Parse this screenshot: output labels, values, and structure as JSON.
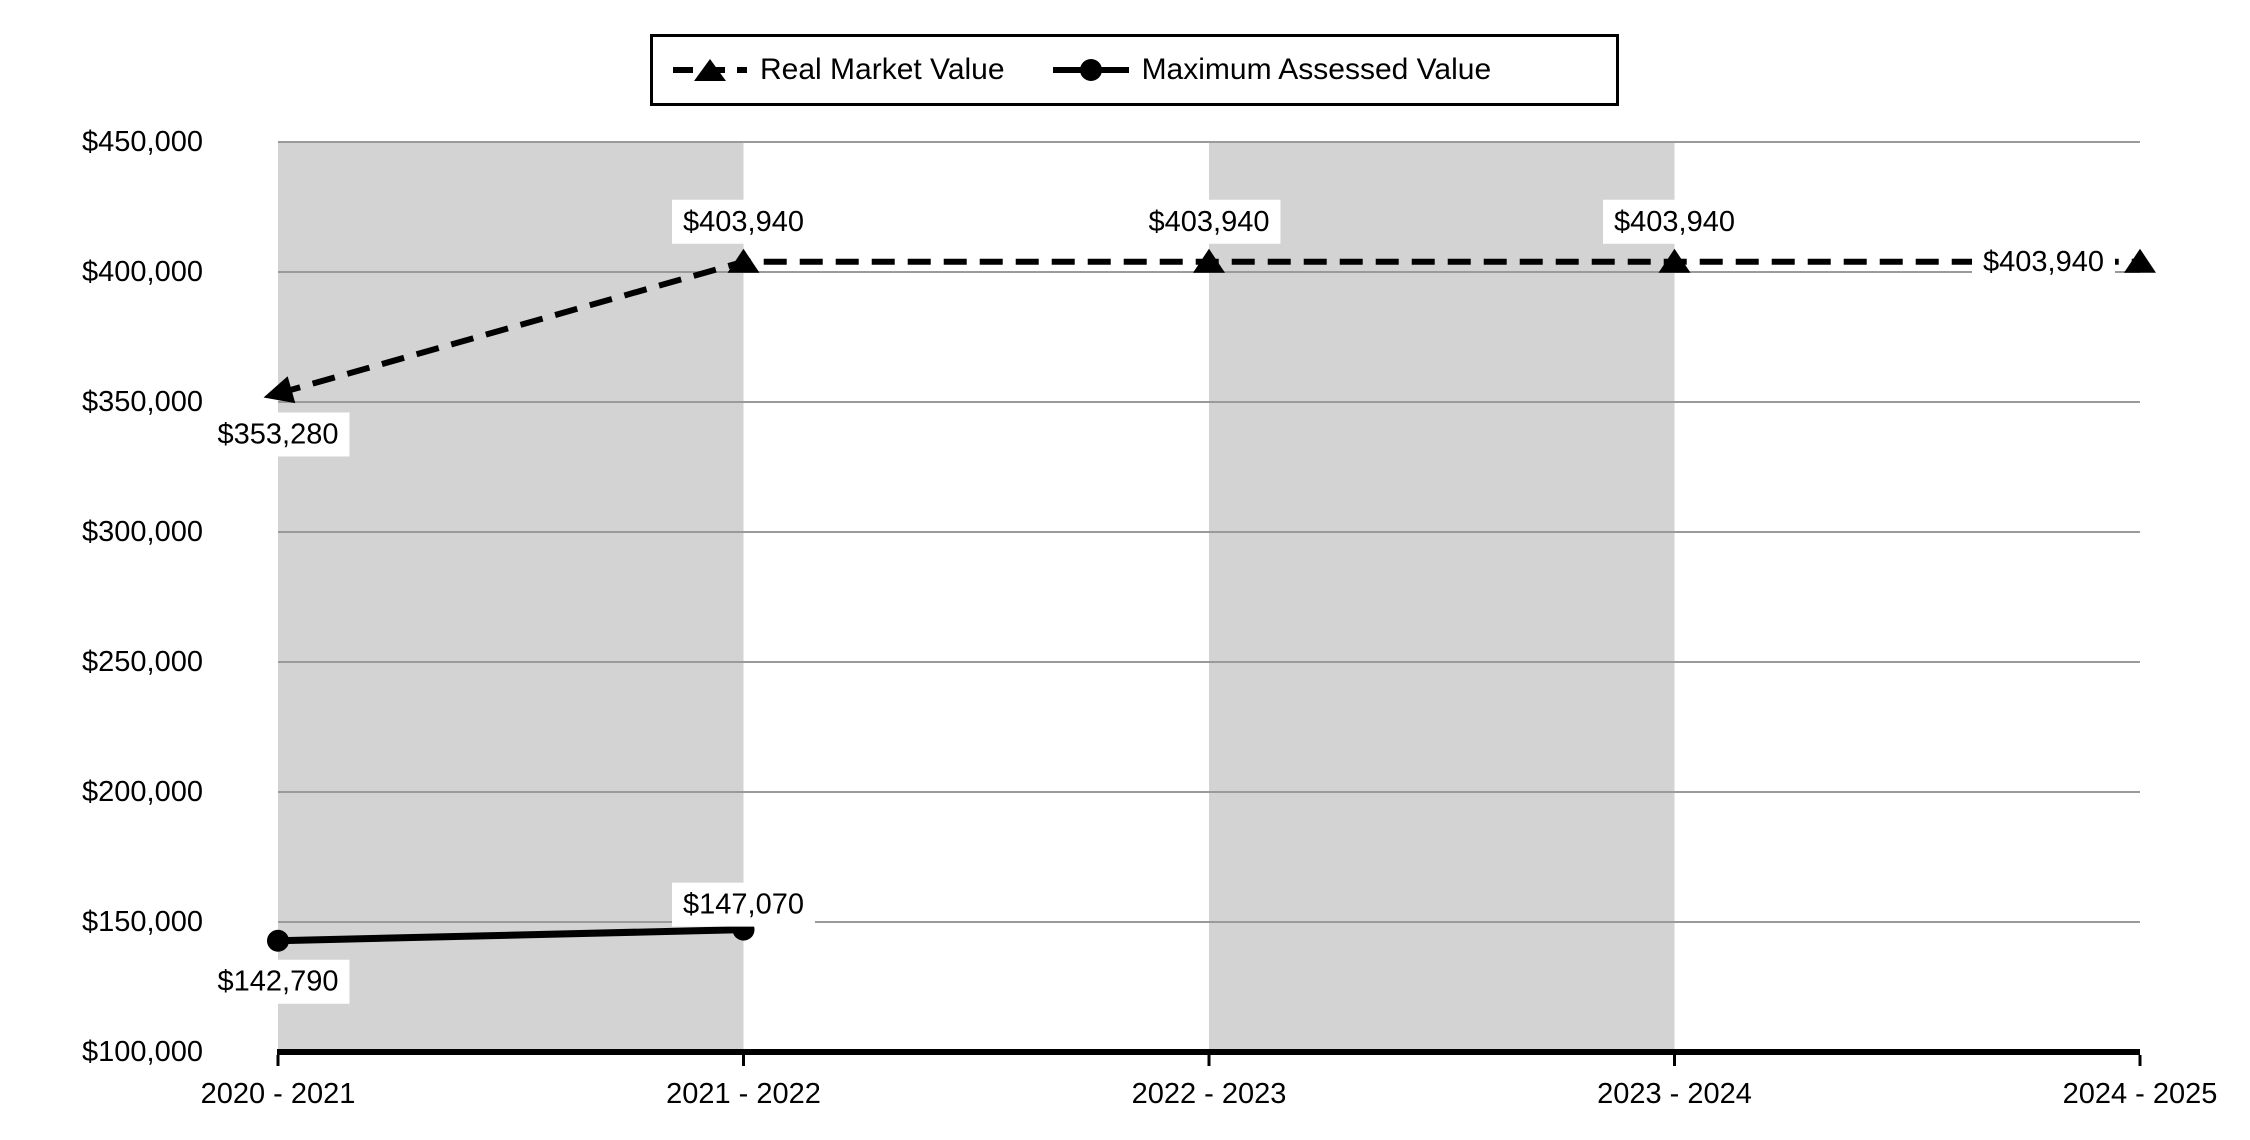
{
  "chart_data": {
    "type": "line",
    "title": "",
    "categories": [
      "2020 - 2021",
      "2021 - 2022",
      "2022 - 2023",
      "2023 - 2024",
      "2024 - 2025"
    ],
    "series": [
      {
        "name": "Real Market Value",
        "line_style": "dashed",
        "marker": "triangle",
        "color": "#000000",
        "values": [
          353280,
          403940,
          403940,
          403940,
          403940
        ],
        "point_labels": [
          "$353,280",
          "$403,940",
          "$403,940",
          "$403,940",
          "$403,940"
        ],
        "label_placement": [
          "below",
          "above",
          "above",
          "above",
          "left"
        ]
      },
      {
        "name": "Maximum Assessed Value",
        "line_style": "solid",
        "marker": "circle",
        "color": "#000000",
        "values": [
          142790,
          147070,
          null,
          null,
          null
        ],
        "point_labels": [
          "$142,790",
          "$147,070",
          null,
          null,
          null
        ],
        "label_placement": [
          "below",
          "above-close",
          null,
          null,
          null
        ]
      }
    ],
    "y_axis": {
      "min": 100000,
      "max": 450000,
      "step": 50000,
      "tick_labels": [
        "$100,000",
        "$150,000",
        "$200,000",
        "$250,000",
        "$300,000",
        "$350,000",
        "$400,000",
        "$450,000"
      ]
    },
    "x_axis": {
      "tick_labels": [
        "2020 - 2021",
        "2021 - 2022",
        "2022 - 2023",
        "2023 - 2024",
        "2024 - 2025"
      ]
    },
    "legend_position": "top",
    "grid": true,
    "plot_bands": {
      "column_indices": [
        0,
        2
      ]
    },
    "colors": {
      "series": "#000000",
      "gridline": "#9a9a9a",
      "band": "#d3d3d3",
      "background": "#ffffff",
      "axis": "#000000",
      "label_background": "#ffffff"
    }
  }
}
